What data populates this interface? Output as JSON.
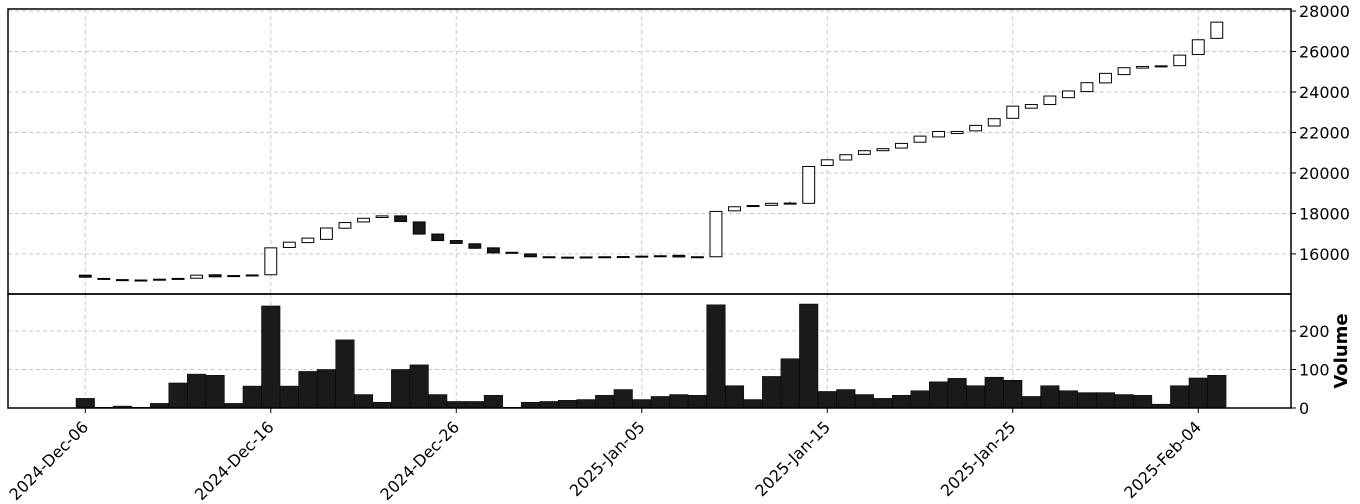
{
  "chart_data": {
    "type": "candlestick",
    "x": [
      "2024-12-06",
      "2024-12-07",
      "2024-12-08",
      "2024-12-09",
      "2024-12-10",
      "2024-12-11",
      "2024-12-12",
      "2024-12-13",
      "2024-12-14",
      "2024-12-15",
      "2024-12-16",
      "2024-12-17",
      "2024-12-18",
      "2024-12-19",
      "2024-12-20",
      "2024-12-21",
      "2024-12-22",
      "2024-12-23",
      "2024-12-24",
      "2024-12-25",
      "2024-12-26",
      "2024-12-27",
      "2024-12-28",
      "2024-12-29",
      "2024-12-30",
      "2024-12-31",
      "2025-01-01",
      "2025-01-02",
      "2025-01-03",
      "2025-01-04",
      "2025-01-05",
      "2025-01-06",
      "2025-01-07",
      "2025-01-08",
      "2025-01-09",
      "2025-01-10",
      "2025-01-11",
      "2025-01-12",
      "2025-01-13",
      "2025-01-14",
      "2025-01-15",
      "2025-01-16",
      "2025-01-17",
      "2025-01-18",
      "2025-01-19",
      "2025-01-20",
      "2025-01-21",
      "2025-01-22",
      "2025-01-23",
      "2025-01-24",
      "2025-01-25",
      "2025-01-26",
      "2025-01-27",
      "2025-01-28",
      "2025-01-29",
      "2025-01-30",
      "2025-01-31",
      "2025-02-01",
      "2025-02-02",
      "2025-02-03",
      "2025-02-04",
      "2025-02-05"
    ],
    "open": [
      14950,
      14790,
      14730,
      14700,
      14720,
      14770,
      14800,
      14970,
      14900,
      14940,
      14970,
      16320,
      16560,
      16720,
      17270,
      17580,
      17800,
      17880,
      17580,
      16980,
      16660,
      16500,
      16300,
      16080,
      16000,
      15860,
      15840,
      15840,
      15850,
      15860,
      15880,
      15900,
      15930,
      15850,
      15860,
      18130,
      18360,
      18400,
      18500,
      18500,
      20370,
      20640,
      20920,
      21100,
      21230,
      21520,
      21780,
      21950,
      22080,
      22320,
      22700,
      23200,
      23380,
      23720,
      24020,
      24450,
      24860,
      25180,
      25260,
      25300,
      25850,
      26650
    ],
    "high": [
      14970,
      14810,
      14750,
      14730,
      14770,
      14810,
      14970,
      14990,
      14950,
      14980,
      16320,
      16600,
      16800,
      17300,
      17570,
      17780,
      17900,
      17900,
      17600,
      17000,
      16680,
      16520,
      16320,
      16100,
      16020,
      15880,
      15860,
      15870,
      15880,
      15890,
      15910,
      15930,
      15950,
      15880,
      18120,
      18350,
      18410,
      18520,
      18580,
      20340,
      20670,
      20920,
      21120,
      21220,
      21480,
      21840,
      22070,
      22070,
      22370,
      22700,
      23320,
      23400,
      23820,
      24070,
      24480,
      24940,
      25220,
      25280,
      25310,
      25840,
      26600,
      27470
    ],
    "low": [
      14830,
      14750,
      14700,
      14680,
      14700,
      14750,
      14780,
      14850,
      14880,
      14920,
      14950,
      16300,
      16540,
      16700,
      17250,
      17560,
      17780,
      17580,
      16960,
      16640,
      16500,
      16260,
      16030,
      16040,
      15840,
      15820,
      15800,
      15820,
      15830,
      15840,
      15860,
      15880,
      15830,
      15830,
      15840,
      18110,
      18340,
      18380,
      18450,
      18480,
      20350,
      20620,
      20900,
      21080,
      21210,
      21500,
      21760,
      21930,
      22060,
      22300,
      22680,
      23180,
      23360,
      23700,
      24000,
      24430,
      24840,
      25160,
      25240,
      25280,
      25830,
      26630
    ],
    "close": [
      14850,
      14770,
      14720,
      14710,
      14750,
      14790,
      14950,
      14870,
      14930,
      14960,
      16300,
      16580,
      16780,
      17280,
      17550,
      17760,
      17880,
      17600,
      16980,
      16660,
      16520,
      16280,
      16050,
      16060,
      15860,
      15840,
      15820,
      15850,
      15860,
      15870,
      15890,
      15910,
      15850,
      15860,
      18100,
      18330,
      18390,
      18500,
      18510,
      20320,
      20650,
      20900,
      21100,
      21200,
      21460,
      21820,
      22050,
      22050,
      22350,
      22680,
      23300,
      23380,
      23800,
      24050,
      24460,
      24920,
      25200,
      25260,
      25290,
      25820,
      26580,
      27450
    ],
    "up_color": "#ffffff",
    "down_color": "#1a1a1a",
    "ylim": [
      14020,
      28100
    ],
    "yticks": [
      16000,
      18000,
      20000,
      22000,
      24000,
      26000,
      28000
    ],
    "xlim": [
      "2024-12-01T20:00",
      "2025-02-09T00:00"
    ],
    "xticks": [
      {
        "value": "2024-12-06",
        "label": "2024-Dec-06"
      },
      {
        "value": "2024-12-16",
        "label": "2024-Dec-16"
      },
      {
        "value": "2024-12-26",
        "label": "2024-Dec-26"
      },
      {
        "value": "2025-01-05",
        "label": "2025-Jan-05"
      },
      {
        "value": "2025-01-15",
        "label": "2025-Jan-15"
      },
      {
        "value": "2025-01-25",
        "label": "2025-Jan-25"
      },
      {
        "value": "2025-02-04",
        "label": "2025-Feb-04"
      }
    ],
    "grid": true,
    "volume": {
      "ylabel": "Volume",
      "color": "#1a1a1a",
      "values": [
        25,
        2,
        5,
        2,
        12,
        65,
        88,
        85,
        12,
        57,
        265,
        57,
        95,
        100,
        177,
        35,
        15,
        100,
        112,
        35,
        17,
        17,
        33,
        2,
        15,
        17,
        20,
        22,
        33,
        48,
        22,
        30,
        35,
        33,
        268,
        58,
        22,
        82,
        128,
        270,
        43,
        48,
        35,
        25,
        33,
        45,
        68,
        77,
        58,
        80,
        72,
        30,
        58,
        45,
        40,
        40,
        35,
        33,
        10,
        58,
        78,
        85
      ],
      "ylim": [
        0,
        296
      ],
      "yticks": [
        0,
        100,
        200
      ]
    }
  }
}
